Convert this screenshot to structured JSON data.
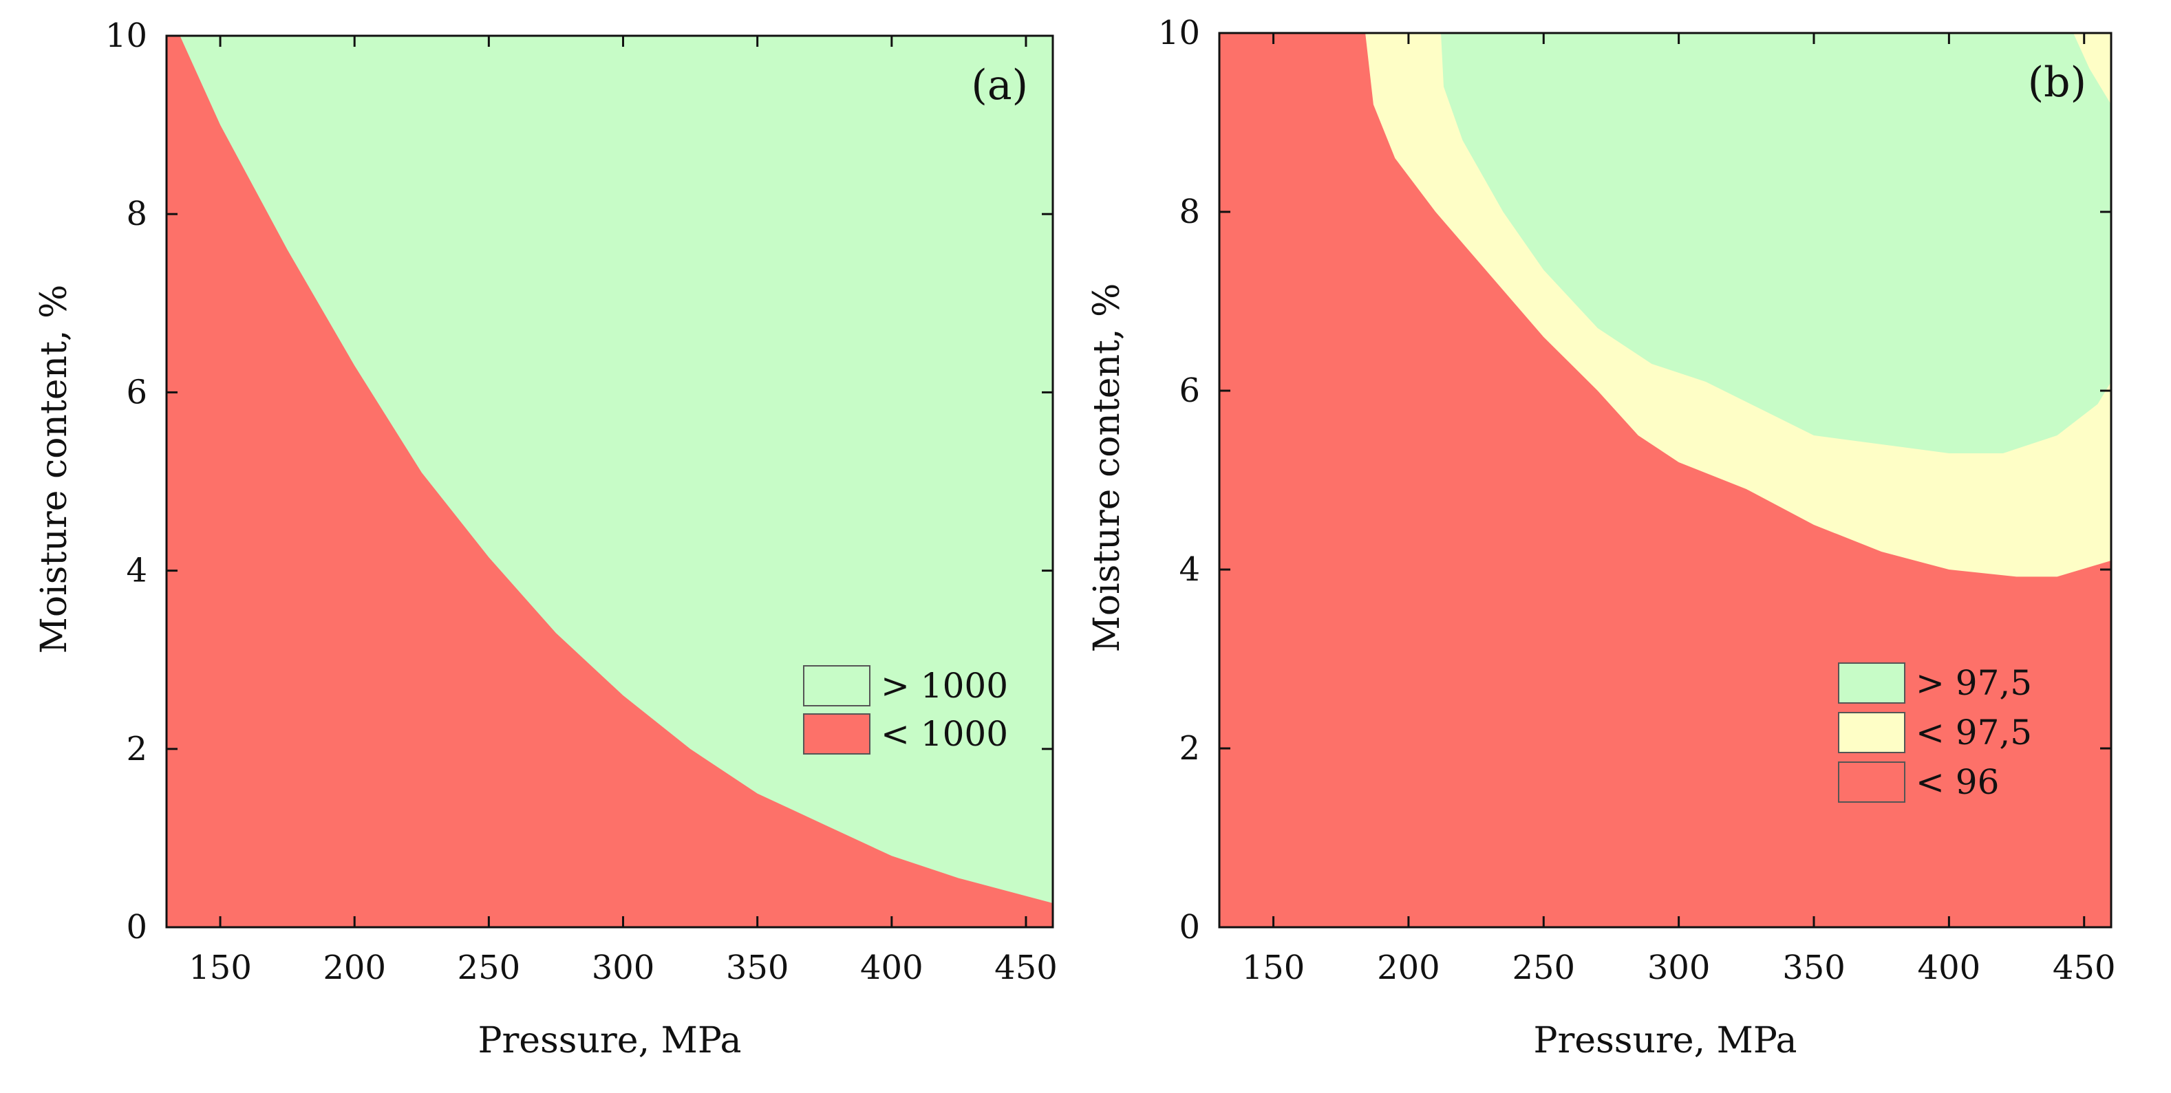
{
  "chart_data": [
    {
      "type": "contour",
      "panel_label": "(a)",
      "xlabel": "Pressure, MPa",
      "ylabel": "Moisture content, %",
      "xlim": [
        130,
        460
      ],
      "ylim": [
        0,
        10
      ],
      "xticks": [
        150,
        200,
        250,
        300,
        350,
        400,
        450
      ],
      "yticks": [
        0,
        2,
        4,
        6,
        8,
        10
      ],
      "legend_position": "lower-right",
      "legend": [
        {
          "label": "> 1000",
          "color": "#c7fcc7"
        },
        {
          "label": "< 1000",
          "color": "#fd7169"
        }
      ],
      "background_color": "#c7fcc7",
      "regions": [
        {
          "name": "< 1000",
          "color": "#fd7169",
          "boundary": [
            [
              135,
              10
            ],
            [
              150,
              9.0
            ],
            [
              175,
              7.6
            ],
            [
              200,
              6.3
            ],
            [
              225,
              5.1
            ],
            [
              250,
              4.15
            ],
            [
              275,
              3.3
            ],
            [
              300,
              2.6
            ],
            [
              325,
              2.0
            ],
            [
              350,
              1.5
            ],
            [
              375,
              1.15
            ],
            [
              400,
              0.8
            ],
            [
              425,
              0.55
            ],
            [
              450,
              0.35
            ],
            [
              460,
              0.27
            ]
          ]
        }
      ]
    },
    {
      "type": "contour",
      "panel_label": "(b)",
      "xlabel": "Pressure, MPa",
      "ylabel": "Moisture content, %",
      "xlim": [
        130,
        460
      ],
      "ylim": [
        0,
        10
      ],
      "xticks": [
        150,
        200,
        250,
        300,
        350,
        400,
        450
      ],
      "yticks": [
        0,
        2,
        4,
        6,
        8,
        10
      ],
      "legend_position": "lower-right",
      "legend": [
        {
          "label": "> 97,5",
          "color": "#c7fcc7"
        },
        {
          "label": "< 97,5",
          "color": "#fefec6"
        },
        {
          "label": "< 96",
          "color": "#fd7169"
        }
      ],
      "background_color": "#fd7169",
      "regions": [
        {
          "name": "< 97,5",
          "color": "#fefec6",
          "boundary": [
            [
              184,
              10
            ],
            [
              187,
              9.2
            ],
            [
              195,
              8.6
            ],
            [
              210,
              8.0
            ],
            [
              230,
              7.3
            ],
            [
              250,
              6.6
            ],
            [
              270,
              6.0
            ],
            [
              285,
              5.5
            ],
            [
              300,
              5.2
            ],
            [
              325,
              4.9
            ],
            [
              350,
              4.5
            ],
            [
              375,
              4.2
            ],
            [
              400,
              4.0
            ],
            [
              425,
              3.92
            ],
            [
              440,
              3.92
            ],
            [
              460,
              4.1
            ]
          ]
        },
        {
          "name": "> 97,5",
          "color": "#c7fcc7",
          "boundary": [
            [
              212,
              10
            ],
            [
              213,
              9.4
            ],
            [
              220,
              8.8
            ],
            [
              235,
              8.0
            ],
            [
              250,
              7.35
            ],
            [
              270,
              6.7
            ],
            [
              290,
              6.3
            ],
            [
              310,
              6.1
            ],
            [
              330,
              5.8
            ],
            [
              350,
              5.5
            ],
            [
              375,
              5.4
            ],
            [
              400,
              5.3
            ],
            [
              420,
              5.3
            ],
            [
              440,
              5.5
            ],
            [
              455,
              5.85
            ],
            [
              460,
              6.1
            ]
          ]
        },
        {
          "name": "< 97,5",
          "color": "#fefec6",
          "corner_boundary": [
            [
              446,
              10
            ],
            [
              452,
              9.6
            ],
            [
              460,
              9.2
            ]
          ]
        }
      ]
    }
  ]
}
